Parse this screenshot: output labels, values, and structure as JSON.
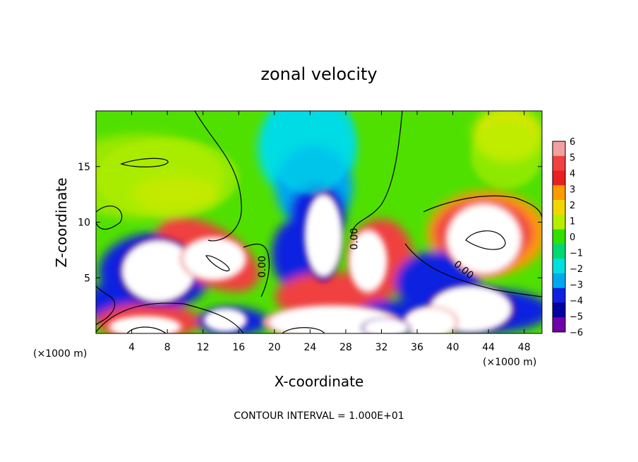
{
  "chart_data": {
    "type": "heatmap",
    "title": "zonal velocity",
    "xlabel": "X-coordinate",
    "ylabel": "Z-coordinate",
    "x_unit_left": "(×1000 m)",
    "x_unit_right": "(×1000 m)",
    "footer": "CONTOUR INTERVAL = 1.000E+01",
    "xlim": [
      0,
      50
    ],
    "ylim": [
      0,
      20
    ],
    "x_ticks": [
      4,
      8,
      12,
      16,
      20,
      24,
      28,
      32,
      36,
      40,
      44,
      48
    ],
    "y_ticks": [
      5,
      10,
      15
    ],
    "colorbar": {
      "labels": [
        "6",
        "5",
        "4",
        "3",
        "2",
        "1",
        "0",
        "−1",
        "−2",
        "−3",
        "−4",
        "−5",
        "−6"
      ],
      "colors": [
        "#f2a0a0",
        "#f04040",
        "#e82020",
        "#ff9a00",
        "#f2d600",
        "#b5ee00",
        "#30e000",
        "#00d870",
        "#00e0e0",
        "#00a8f0",
        "#1020e0",
        "#0000a0",
        "#7000a8"
      ]
    },
    "contour_labels": [
      {
        "text": "0.00",
        "x": 19.0,
        "z": 6.0,
        "rotate": -90
      },
      {
        "text": "0.00",
        "x": 29.3,
        "z": 8.5,
        "rotate": -90
      },
      {
        "text": "0.00",
        "x": 41.0,
        "z": 5.5,
        "rotate": 40
      }
    ],
    "features": [
      {
        "kind": "blob",
        "x": 7.0,
        "z": 5.6,
        "rx": 4.0,
        "rz": 2.7,
        "value": -8
      },
      {
        "kind": "blob",
        "x": 13.2,
        "z": 6.7,
        "rx": 3.4,
        "rz": 1.8,
        "value": 8
      },
      {
        "kind": "blob",
        "x": 25.5,
        "z": 8.8,
        "rx": 2.0,
        "rz": 3.6,
        "value": -8
      },
      {
        "kind": "blob",
        "x": 30.5,
        "z": 6.5,
        "rx": 2.0,
        "rz": 2.6,
        "value": 8
      },
      {
        "kind": "blob",
        "x": 43.5,
        "z": 8.5,
        "rx": 4.0,
        "rz": 3.0,
        "value": 8
      },
      {
        "kind": "blob",
        "x": 42.0,
        "z": 2.2,
        "rx": 4.5,
        "rz": 2.0,
        "value": -8
      },
      {
        "kind": "blob",
        "x": 26.5,
        "z": 1.0,
        "rx": 7.0,
        "rz": 1.4,
        "value": 8
      },
      {
        "kind": "blob",
        "x": 37.5,
        "z": 1.0,
        "rx": 2.8,
        "rz": 1.3,
        "value": 8
      },
      {
        "kind": "blob",
        "x": 5.5,
        "z": 0.6,
        "rx": 3.8,
        "rz": 0.9,
        "value": 8
      },
      {
        "kind": "blob",
        "x": 32.5,
        "z": 0.5,
        "rx": 2.5,
        "rz": 0.8,
        "value": -8
      },
      {
        "kind": "blob",
        "x": 14.5,
        "z": 1.2,
        "rx": 2.3,
        "rz": 1.0,
        "value": -8
      },
      {
        "kind": "blob",
        "x": 24.0,
        "z": 17.5,
        "rx": 5.0,
        "rz": 5.0,
        "value": -2
      },
      {
        "kind": "blob",
        "x": 8.0,
        "z": 14.0,
        "rx": 8.0,
        "rz": 3.5,
        "value": 1.5
      },
      {
        "kind": "blob",
        "x": 46.0,
        "z": 16.0,
        "rx": 4.0,
        "rz": 3.0,
        "value": 2
      }
    ]
  }
}
